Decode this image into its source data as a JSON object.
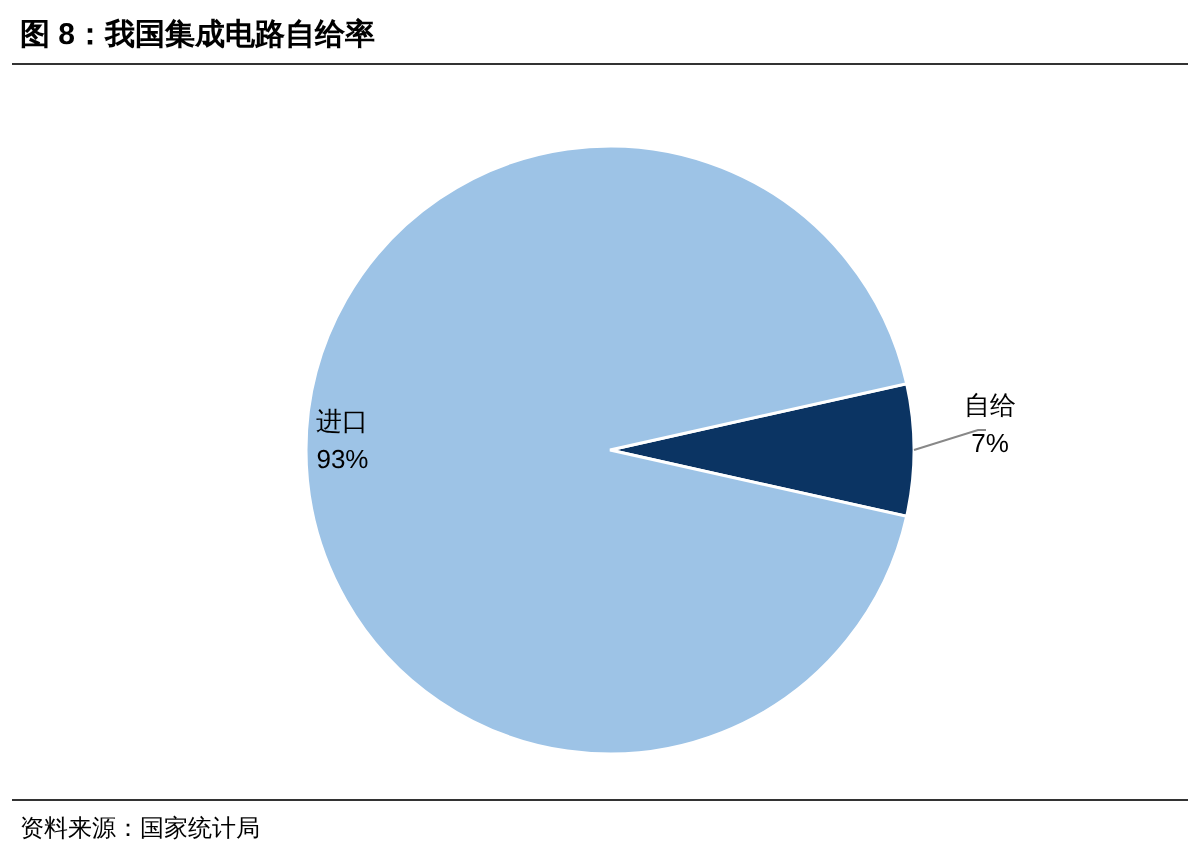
{
  "chart_data": {
    "type": "pie",
    "title": "图 8：我国集成电路自给率",
    "categories": [
      "自给",
      "进口"
    ],
    "values": [
      7,
      93
    ],
    "colors": [
      "#0b3463",
      "#9dc3e6"
    ],
    "value_labels": [
      "7%",
      "93%"
    ],
    "annotations": [
      "资料来源：国家统计局"
    ]
  }
}
